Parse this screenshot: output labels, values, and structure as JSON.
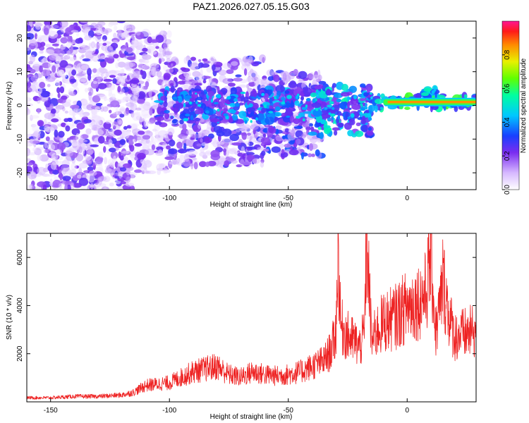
{
  "title": "PAZ1.2026.027.05.15.G03",
  "colors": {
    "snr_line": "#ee2222",
    "axis": "#000000"
  },
  "chart_data": [
    {
      "type": "heatmap",
      "xlabel": "Height of straight line (km)",
      "ylabel": "Frequency (Hz)",
      "xlim": [
        -160,
        29
      ],
      "ylim": [
        -25,
        25
      ],
      "xticks": [
        -150,
        -100,
        -50,
        0
      ],
      "yticks": [
        -20,
        -10,
        0,
        10,
        20
      ],
      "colorbar": {
        "label": "Normalized spectral amplitude",
        "range": [
          0,
          1
        ],
        "ticks": [
          0.0,
          0.2,
          0.4,
          0.6,
          0.8
        ]
      },
      "ridge": {
        "x": [
          -10,
          29
        ],
        "frequency": 1,
        "amplitude": 0.85
      },
      "regions": [
        {
          "x": [
            -160,
            -115
          ],
          "y": [
            -25,
            25
          ],
          "amplitude": [
            0.03,
            0.28
          ]
        },
        {
          "x": [
            -115,
            -100
          ],
          "y": [
            -20,
            22
          ],
          "amplitude": [
            0.03,
            0.25
          ]
        },
        {
          "x": [
            -100,
            -60
          ],
          "y": [
            -18,
            14
          ],
          "amplitude": [
            0.05,
            0.3
          ]
        },
        {
          "x": [
            -60,
            -35
          ],
          "y": [
            -15,
            10
          ],
          "amplitude": [
            0.08,
            0.35
          ]
        },
        {
          "x": [
            -105,
            -40
          ],
          "y": [
            -5,
            5
          ],
          "amplitude": [
            0.2,
            0.45
          ]
        },
        {
          "x": [
            -40,
            -15
          ],
          "y": [
            -9,
            6
          ],
          "amplitude": [
            0.2,
            0.55
          ]
        },
        {
          "x": [
            -15,
            29
          ],
          "y": [
            -1,
            3
          ],
          "amplitude": [
            0.25,
            0.65
          ]
        },
        {
          "x": [
            7,
            12
          ],
          "y": [
            2,
            5
          ],
          "amplitude": [
            0.3,
            0.6
          ]
        }
      ]
    },
    {
      "type": "line",
      "xlabel": "Height of straight line (km)",
      "ylabel": "SNR (10 * v/v)",
      "xlim": [
        -160,
        29
      ],
      "ylim": [
        0,
        7000
      ],
      "xticks": [
        -150,
        -100,
        -50,
        0
      ],
      "yticks": [
        2000,
        4000,
        6000
      ],
      "series": [
        {
          "x": [
            -160,
            -150,
            -140,
            -130,
            -120,
            -115,
            -110,
            -100,
            -95,
            -90,
            -85,
            -80,
            -75,
            -70,
            -65,
            -60,
            -55,
            -50,
            -45,
            -40,
            -35,
            -32,
            -30,
            -29,
            -28,
            -25,
            -22,
            -20,
            -18,
            -17,
            -15,
            -12,
            -10,
            -5,
            0,
            5,
            8,
            10,
            12,
            14,
            15,
            18,
            20,
            25,
            29
          ],
          "y": [
            150,
            150,
            200,
            200,
            250,
            350,
            600,
            700,
            900,
            1100,
            1200,
            1300,
            1000,
            900,
            1100,
            1000,
            950,
            1000,
            1100,
            1300,
            1500,
            1900,
            2500,
            5600,
            2800,
            2400,
            2200,
            2000,
            2500,
            6300,
            2200,
            2700,
            2900,
            3100,
            3500,
            3700,
            4000,
            5500,
            2500,
            3600,
            4500,
            3000,
            2400,
            2500,
            2600
          ]
        }
      ]
    }
  ]
}
